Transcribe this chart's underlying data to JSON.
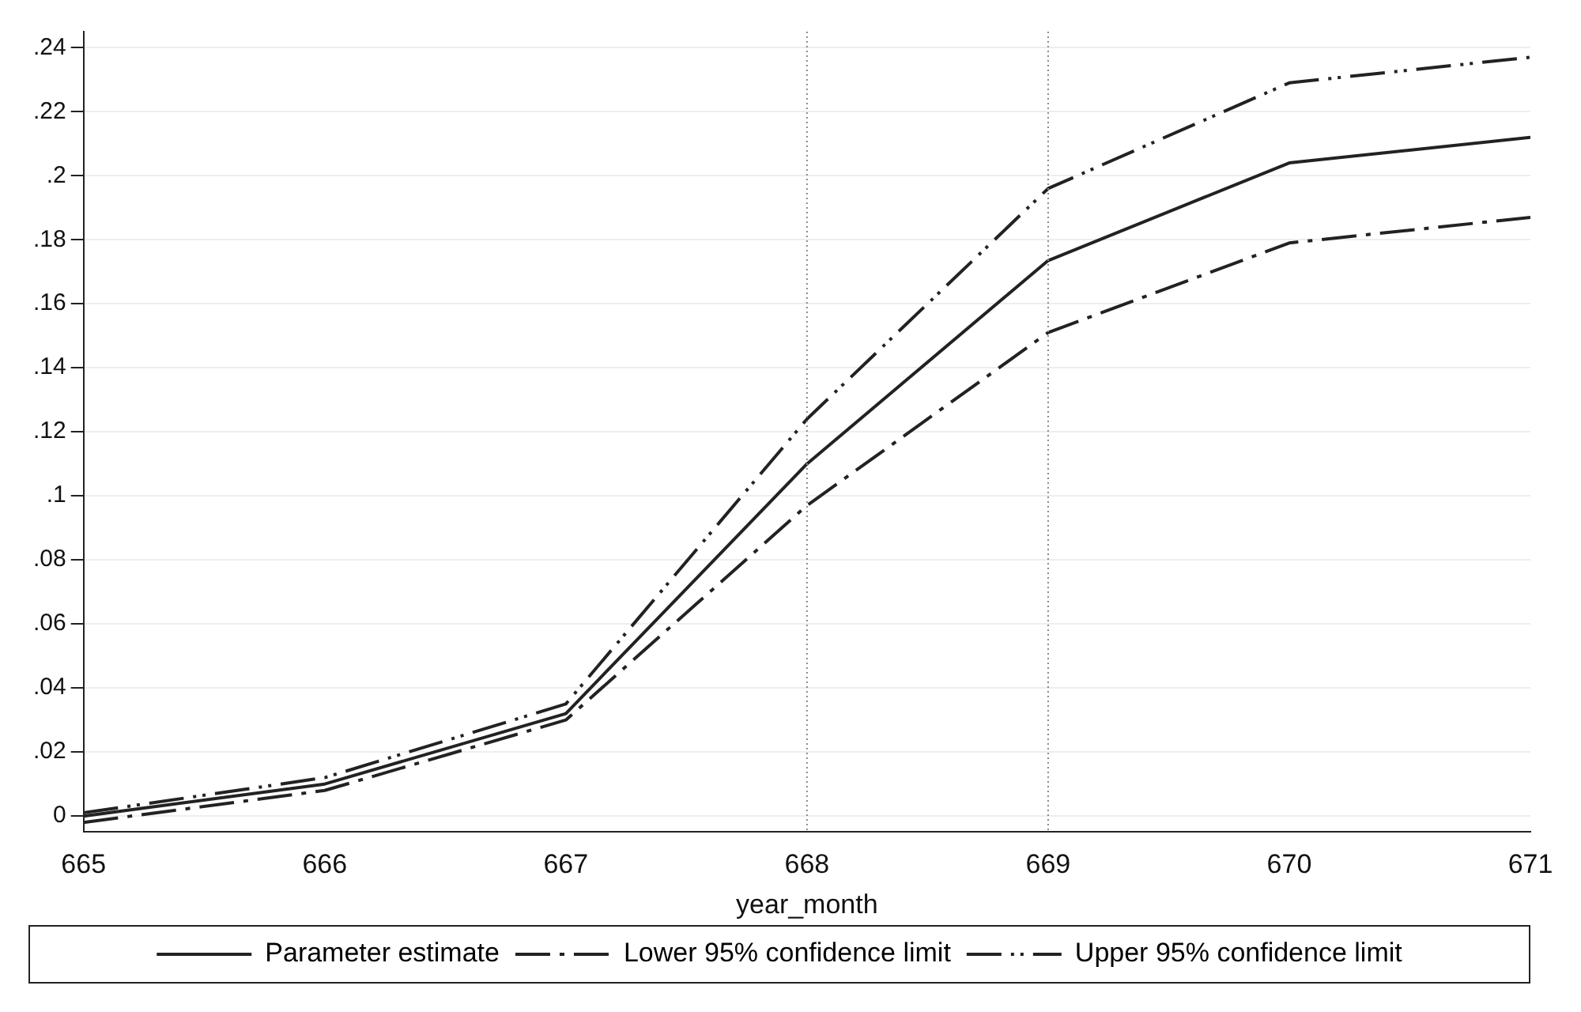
{
  "chart_data": {
    "type": "line",
    "xlabel": "year_month",
    "x": [
      665,
      666,
      667,
      668,
      669,
      670,
      671
    ],
    "series": [
      {
        "name": "Parameter estimate",
        "color": "#222222",
        "line_style": "solid",
        "values": [
          0,
          0.01,
          0.032,
          0.11,
          0.1735,
          0.204,
          0.212
        ]
      },
      {
        "name": "Lower 95% confidence limit",
        "color": "#222222",
        "line_style": "dashed",
        "values": [
          -0.002,
          0.008,
          0.03,
          0.097,
          0.151,
          0.179,
          0.187
        ]
      },
      {
        "name": "Upper 95% confidence limit",
        "color": "#222222",
        "line_style": "dashed",
        "values": [
          0.001,
          0.012,
          0.035,
          0.124,
          0.196,
          0.229,
          0.237
        ]
      }
    ],
    "xlim": [
      665,
      671
    ],
    "xticks": [
      665,
      666,
      667,
      668,
      669,
      670,
      671
    ],
    "ylim": [
      -0.005,
      0.245
    ],
    "yticks": [
      {
        "value": 0,
        "label": "0"
      },
      {
        "value": 0.02,
        "label": ".02"
      },
      {
        "value": 0.04,
        "label": ".04"
      },
      {
        "value": 0.06,
        "label": ".06"
      },
      {
        "value": 0.08,
        "label": ".08"
      },
      {
        "value": 0.1,
        "label": ".1"
      },
      {
        "value": 0.12,
        "label": ".12"
      },
      {
        "value": 0.14,
        "label": ".14"
      },
      {
        "value": 0.16,
        "label": ".16"
      },
      {
        "value": 0.18,
        "label": ".18"
      },
      {
        "value": 0.2,
        "label": ".2"
      },
      {
        "value": 0.22,
        "label": ".22"
      },
      {
        "value": 0.24,
        "label": ".24"
      }
    ],
    "ref_lines": [
      {
        "axis": "x",
        "value": 668,
        "line_style": "dotted",
        "color": "#888888"
      },
      {
        "axis": "x",
        "value": 669,
        "line_style": "dotted",
        "color": "#888888"
      }
    ],
    "grid": "y",
    "legend": "bottom",
    "marker": "none"
  }
}
